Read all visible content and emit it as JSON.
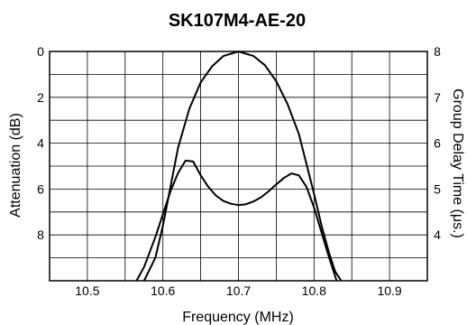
{
  "chart_data": {
    "type": "line",
    "title": "SK107M4-AE-20",
    "xlabel": "Frequency (MHz)",
    "ylabel_left": "Attenuation (dB)",
    "ylabel_right": "Group Delay Time (μs.)",
    "xlim": [
      10.45,
      10.95
    ],
    "ylim_left": [
      0,
      10
    ],
    "ylim_left_inverted": true,
    "ylim_right": [
      3,
      8
    ],
    "x_ticks": [
      "10.5",
      "10.6",
      "10.7",
      "10.8",
      "10.9"
    ],
    "y_left_ticks": [
      "0",
      "2",
      "4",
      "6",
      "8"
    ],
    "y_right_ticks": [
      "8",
      "7",
      "6",
      "5",
      "4"
    ],
    "grid": true,
    "series": [
      {
        "axis": "left",
        "x": [
          10.575,
          10.59,
          10.6,
          10.61,
          10.62,
          10.635,
          10.65,
          10.665,
          10.68,
          10.7,
          10.72,
          10.735,
          10.75,
          10.765,
          10.78,
          10.79,
          10.8,
          10.81,
          10.82,
          10.828,
          10.836
        ],
        "y": [
          10.0,
          9.0,
          7.6,
          5.9,
          4.2,
          2.5,
          1.35,
          0.65,
          0.2,
          0.0,
          0.2,
          0.6,
          1.3,
          2.3,
          3.6,
          4.9,
          6.2,
          7.6,
          8.8,
          9.6,
          10.0
        ]
      },
      {
        "axis": "right",
        "x": [
          10.565,
          10.575,
          10.59,
          10.6,
          10.61,
          10.62,
          10.63,
          10.64,
          10.65,
          10.66,
          10.67,
          10.68,
          10.69,
          10.7,
          10.71,
          10.72,
          10.73,
          10.74,
          10.75,
          10.76,
          10.77,
          10.78,
          10.79,
          10.8,
          10.81,
          10.82,
          10.83
        ],
        "y": [
          3.0,
          3.3,
          3.95,
          4.45,
          4.95,
          5.35,
          5.62,
          5.6,
          5.3,
          5.05,
          4.86,
          4.74,
          4.68,
          4.65,
          4.67,
          4.73,
          4.82,
          4.95,
          5.1,
          5.24,
          5.34,
          5.3,
          5.05,
          4.6,
          4.05,
          3.5,
          3.0
        ]
      }
    ]
  }
}
